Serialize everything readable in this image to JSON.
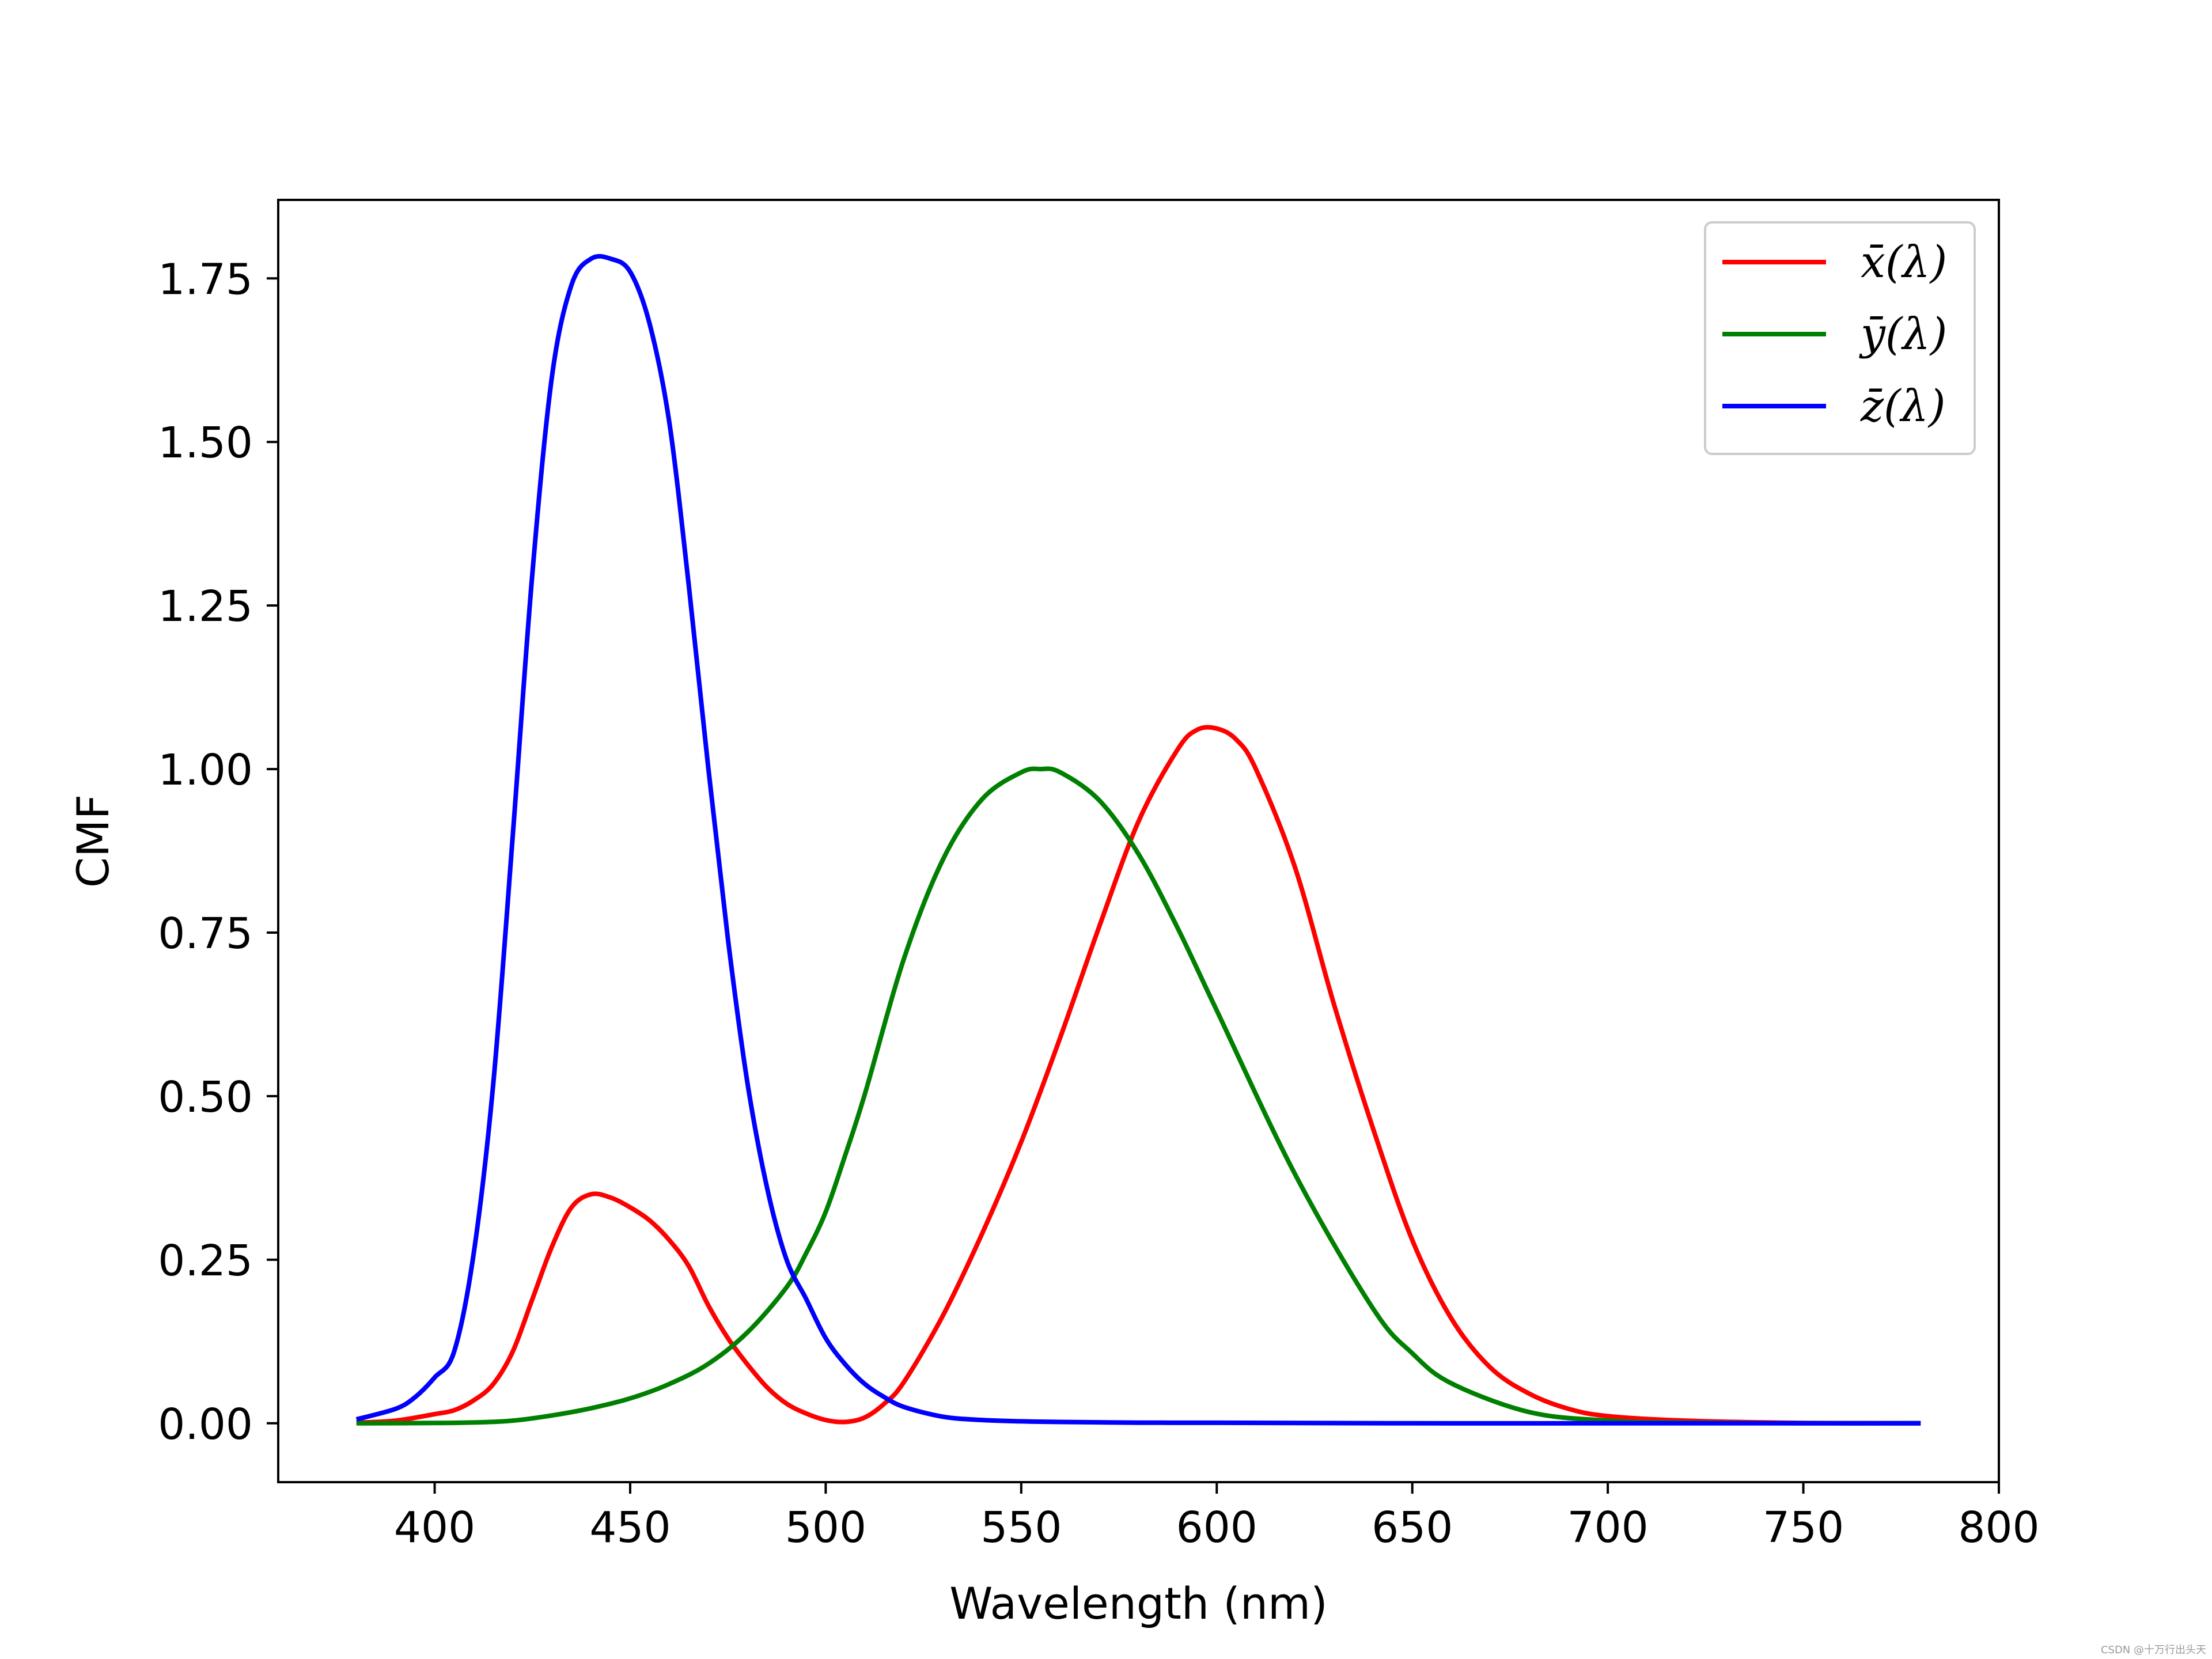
{
  "chart_data": {
    "type": "line",
    "xlabel": "Wavelength (nm)",
    "ylabel": "CMF",
    "xlim": [
      360,
      800
    ],
    "ylim": [
      -0.09,
      1.87
    ],
    "xticks": [
      400,
      450,
      500,
      550,
      600,
      650,
      700,
      750,
      800
    ],
    "xtick_labels": [
      "400",
      "450",
      "500",
      "550",
      "600",
      "650",
      "700",
      "750",
      "800"
    ],
    "yticks": [
      0,
      0.25,
      0.5,
      0.75,
      1.0,
      1.25,
      1.5,
      1.75
    ],
    "ytick_labels": [
      "0.00",
      "0.25",
      "0.50",
      "0.75",
      "1.00",
      "1.25",
      "1.50",
      "1.75"
    ],
    "grid": false,
    "legend_position": "top-right",
    "series": [
      {
        "name": "x̄(λ)",
        "color": "#ff0000",
        "x": [
          380,
          390,
          400,
          405,
          410,
          415,
          420,
          425,
          430,
          435,
          440,
          445,
          450,
          455,
          460,
          465,
          470,
          475,
          480,
          485,
          490,
          495,
          500,
          505,
          510,
          515,
          520,
          530,
          540,
          550,
          560,
          570,
          580,
          590,
          595,
          600,
          605,
          610,
          620,
          630,
          640,
          650,
          660,
          670,
          680,
          690,
          700,
          720,
          750,
          780
        ],
        "y": [
          0.001,
          0.004,
          0.014,
          0.02,
          0.035,
          0.06,
          0.11,
          0.19,
          0.27,
          0.33,
          0.35,
          0.345,
          0.33,
          0.31,
          0.28,
          0.24,
          0.18,
          0.13,
          0.09,
          0.055,
          0.03,
          0.015,
          0.005,
          0.002,
          0.009,
          0.03,
          0.063,
          0.165,
          0.29,
          0.43,
          0.59,
          0.76,
          0.92,
          1.03,
          1.06,
          1.062,
          1.045,
          1.0,
          0.85,
          0.64,
          0.45,
          0.28,
          0.16,
          0.085,
          0.045,
          0.022,
          0.011,
          0.004,
          0.0005,
          0.0001
        ]
      },
      {
        "name": "ȳ(λ)",
        "color": "#008000",
        "x": [
          380,
          400,
          410,
          420,
          430,
          440,
          450,
          460,
          470,
          480,
          490,
          495,
          500,
          505,
          510,
          520,
          530,
          540,
          550,
          555,
          560,
          570,
          580,
          590,
          600,
          620,
          640,
          650,
          660,
          680,
          700,
          720,
          750,
          780
        ],
        "y": [
          0.0,
          0.0004,
          0.0012,
          0.004,
          0.012,
          0.023,
          0.038,
          0.06,
          0.091,
          0.139,
          0.208,
          0.26,
          0.323,
          0.41,
          0.503,
          0.71,
          0.862,
          0.954,
          0.995,
          1.0,
          0.995,
          0.952,
          0.87,
          0.757,
          0.631,
          0.381,
          0.175,
          0.107,
          0.061,
          0.017,
          0.004,
          0.001,
          0.0001,
          0.0
        ]
      },
      {
        "name": "z̄(λ)",
        "color": "#0000ff",
        "x": [
          380,
          390,
          395,
          400,
          405,
          410,
          415,
          420,
          425,
          430,
          435,
          440,
          445,
          450,
          455,
          460,
          465,
          470,
          475,
          480,
          485,
          490,
          495,
          500,
          505,
          510,
          515,
          520,
          530,
          540,
          550,
          560,
          580,
          600,
          650,
          700,
          780
        ],
        "y": [
          0.006,
          0.022,
          0.04,
          0.07,
          0.11,
          0.26,
          0.52,
          0.9,
          1.3,
          1.6,
          1.74,
          1.78,
          1.78,
          1.76,
          1.68,
          1.53,
          1.28,
          1.0,
          0.74,
          0.52,
          0.36,
          0.25,
          0.19,
          0.13,
          0.09,
          0.06,
          0.04,
          0.025,
          0.01,
          0.005,
          0.003,
          0.002,
          0.001,
          0.0008,
          0.0,
          0.0,
          0.0
        ]
      }
    ]
  },
  "watermark": "CSDN @十万行出头天"
}
